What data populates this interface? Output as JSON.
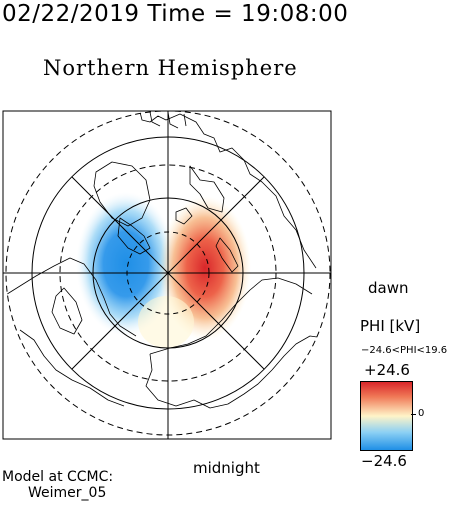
{
  "header": {
    "timestamp": "02/22/2019 Time = 19:08:00",
    "hemisphere": "Northern Hemisphere"
  },
  "map": {
    "dawn_label": "dawn",
    "midnight_label": "midnight",
    "projection": "polar",
    "latitude_circles_dashed": true,
    "potential_cells": [
      {
        "sign": "negative",
        "side": "dusk",
        "color": "#1f8fe6"
      },
      {
        "sign": "positive",
        "side": "dawn",
        "color": "#d9262a"
      }
    ]
  },
  "legend": {
    "title": "PHI [kV]",
    "range": "−24.6<PHI<19.6",
    "max": "+24.6",
    "mid": "0",
    "min": "−24.6"
  },
  "credit": {
    "line1": "Model at CCMC:",
    "line2": "Weimer_05"
  }
}
